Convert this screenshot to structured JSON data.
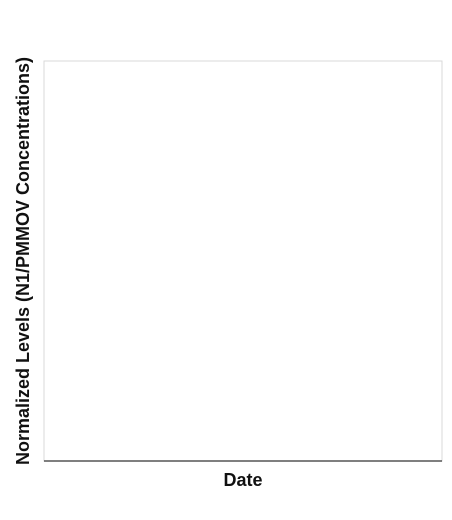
{
  "chart_data": {
    "type": "line",
    "title": "",
    "xlabel": "Date",
    "ylabel": "Normalized Levels (N1/PMMOV Concentrations)",
    "series": [],
    "grid": false,
    "legend": "none",
    "colors": {
      "plot_border": "#d9d9d9",
      "x_axis_line": "#555555",
      "text": "#111111",
      "background": "#ffffff"
    }
  }
}
